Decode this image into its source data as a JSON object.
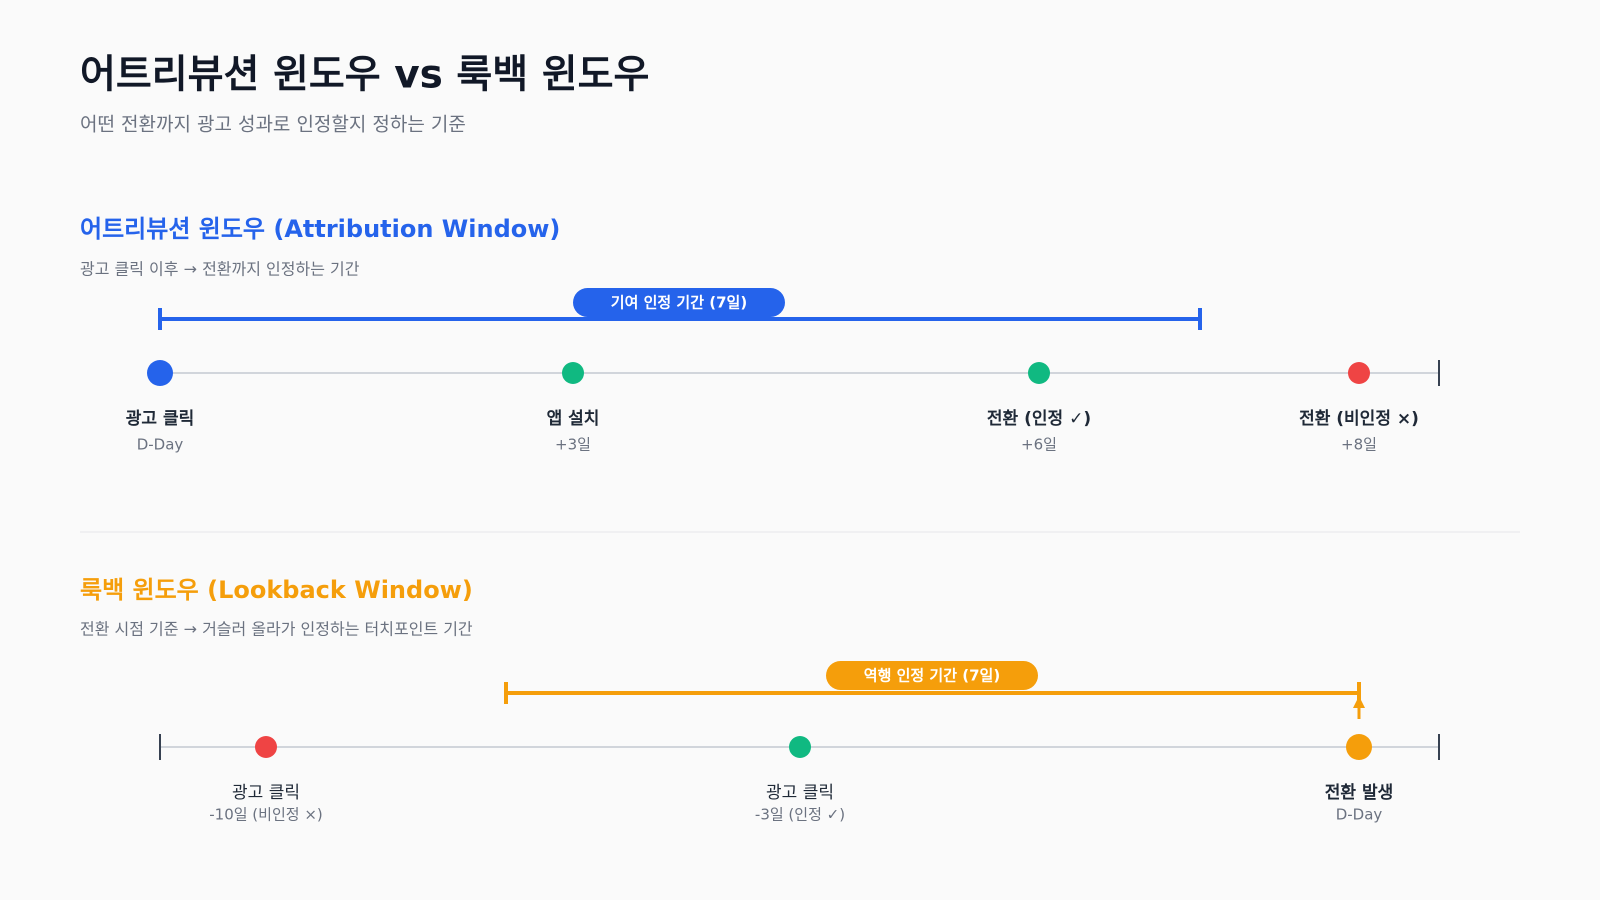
{
  "header": {
    "title": "어트리뷰션 윈도우 vs 룩백 윈도우",
    "subtitle": "어떤 전환까지 광고 성과로 인정할지 정하는 기준"
  },
  "sections": [
    {
      "heading": "어트리뷰션 윈도우 (Attribution Window)",
      "description": "광고 클릭 이후 → 전환까지 인정하는 기간",
      "badge": "기여 인정 기간 (7일)",
      "events": [
        {
          "label": "광고 클릭",
          "when": "D-Day"
        },
        {
          "label": "앱 설치",
          "when": "+3일"
        },
        {
          "label": "전환 (인정 ✓)",
          "when": "+6일"
        },
        {
          "label": "전환 (비인정 ×)",
          "when": "+8일"
        }
      ]
    },
    {
      "heading": "룩백 윈도우 (Lookback Window)",
      "description": "전환 시점 기준 → 거슬러 올라가 인정하는 터치포인트 기간",
      "badge": "역행 인정 기간 (7일)",
      "events": [
        {
          "label": "광고 클릭",
          "when": "-10일 (비인정 ×)"
        },
        {
          "label": "광고 클릭",
          "when": "-3일 (인정 ✓)"
        },
        {
          "label": "전환 발생",
          "when": "D-Day"
        }
      ]
    }
  ]
}
